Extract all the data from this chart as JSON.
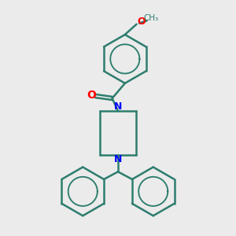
{
  "background_color": "#ebebeb",
  "bond_color": "#2d7d6e",
  "nitrogen_color": "#0000ff",
  "oxygen_color": "#ff0000",
  "bond_width": 1.8,
  "fig_width": 3.0,
  "fig_height": 3.0,
  "dpi": 100,
  "scale": 10,
  "methoxy_label": "O",
  "methoxy_ch3": "CH₃",
  "carbonyl_O": "O"
}
